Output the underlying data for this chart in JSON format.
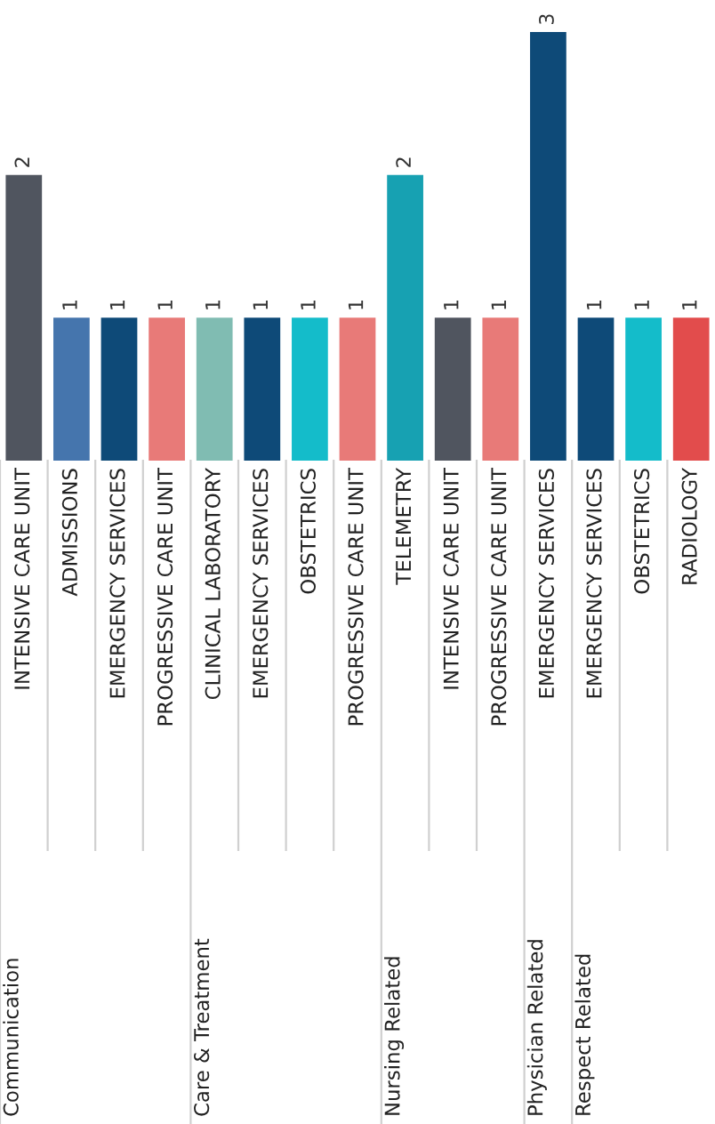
{
  "chart_data": {
    "type": "bar",
    "categories": [
      "INTENSIVE CARE UNIT",
      "ADMISSIONS",
      "EMERGENCY SERVICES",
      "PROGRESSIVE CARE UNIT",
      "CLINICAL LABORATORY",
      "EMERGENCY SERVICES",
      "OBSTETRICS",
      "PROGRESSIVE CARE UNIT",
      "TELEMETRY",
      "INTENSIVE CARE UNIT",
      "PROGRESSIVE CARE UNIT",
      "EMERGENCY SERVICES",
      "EMERGENCY SERVICES",
      "OBSTETRICS",
      "RADIOLOGY"
    ],
    "values": [
      2,
      1,
      1,
      1,
      1,
      1,
      1,
      1,
      2,
      1,
      1,
      3,
      1,
      1,
      1
    ],
    "colors": [
      "#50555f",
      "#4575ad",
      "#0e4a78",
      "#e87a78",
      "#80bcb2",
      "#0e4a78",
      "#14bcca",
      "#e87a78",
      "#17a1b2",
      "#50555f",
      "#e87a78",
      "#0e4a78",
      "#0e4a78",
      "#14bcca",
      "#e24c4c"
    ],
    "data_labels": true,
    "annotations": [
      "Communication",
      "Care & Treatment",
      "Nursing Related",
      "Physician Related",
      "Respect Related"
    ]
  }
}
